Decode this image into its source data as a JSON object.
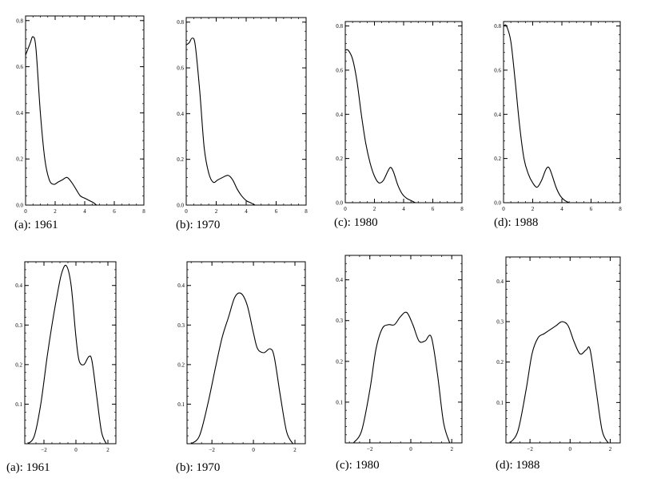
{
  "chart_data": [
    {
      "type": "line",
      "caption": "(a): 1961",
      "xlim": [
        0,
        8
      ],
      "ylim": [
        0,
        0.82
      ],
      "xticks": [
        0,
        2,
        4,
        6,
        8
      ],
      "xtick_labels": [
        "0",
        "2",
        "4",
        "6",
        "8"
      ],
      "yticks": [
        0,
        0.2,
        0.4,
        0.6,
        0.8
      ],
      "ytick_labels": [
        "0.0",
        "0.2",
        "0.4",
        "0.6",
        "0.8"
      ],
      "series": [
        {
          "x": [
            0,
            0.3,
            0.5,
            0.7,
            1.0,
            1.3,
            1.6,
            1.9,
            2.2,
            2.5,
            2.8,
            3.1,
            3.4,
            3.7,
            4.0,
            4.3,
            4.6,
            4.8
          ],
          "y": [
            0.65,
            0.7,
            0.73,
            0.68,
            0.4,
            0.2,
            0.11,
            0.09,
            0.1,
            0.11,
            0.12,
            0.1,
            0.07,
            0.04,
            0.03,
            0.02,
            0.01,
            0.0
          ]
        }
      ]
    },
    {
      "type": "line",
      "caption": "(b): 1970",
      "xlim": [
        0,
        8
      ],
      "ylim": [
        0,
        0.82
      ],
      "xticks": [
        0,
        2,
        4,
        6,
        8
      ],
      "xtick_labels": [
        "0",
        "2",
        "4",
        "6",
        "8"
      ],
      "yticks": [
        0,
        0.2,
        0.4,
        0.6,
        0.8
      ],
      "ytick_labels": [
        "0.0",
        "0.2",
        "0.4",
        "0.6",
        "0.8"
      ],
      "series": [
        {
          "x": [
            0,
            0.2,
            0.4,
            0.6,
            0.9,
            1.2,
            1.5,
            1.8,
            2.1,
            2.4,
            2.8,
            3.1,
            3.4,
            3.7,
            4.0,
            4.3,
            4.6
          ],
          "y": [
            0.7,
            0.71,
            0.73,
            0.7,
            0.5,
            0.25,
            0.14,
            0.1,
            0.11,
            0.12,
            0.13,
            0.11,
            0.07,
            0.04,
            0.02,
            0.01,
            0.0
          ]
        }
      ]
    },
    {
      "type": "line",
      "caption": "(c): 1980",
      "xlim": [
        0,
        8
      ],
      "ylim": [
        0,
        0.82
      ],
      "xticks": [
        0,
        2,
        4,
        6,
        8
      ],
      "xtick_labels": [
        "0",
        "2",
        "4",
        "6",
        "8"
      ],
      "yticks": [
        0,
        0.2,
        0.4,
        0.6,
        0.8
      ],
      "ytick_labels": [
        "0.0",
        "0.2",
        "0.4",
        "0.6",
        "0.8"
      ],
      "series": [
        {
          "x": [
            0,
            0.2,
            0.5,
            0.8,
            1.1,
            1.4,
            1.7,
            2.0,
            2.3,
            2.6,
            2.9,
            3.1,
            3.3,
            3.6,
            3.9,
            4.2,
            4.5,
            4.8
          ],
          "y": [
            0.69,
            0.69,
            0.65,
            0.55,
            0.4,
            0.27,
            0.18,
            0.12,
            0.09,
            0.1,
            0.14,
            0.16,
            0.14,
            0.08,
            0.04,
            0.02,
            0.01,
            0.0
          ]
        }
      ]
    },
    {
      "type": "line",
      "caption": "(d): 1988",
      "xlim": [
        0,
        8
      ],
      "ylim": [
        0,
        0.82
      ],
      "xticks": [
        0,
        2,
        4,
        6,
        8
      ],
      "xtick_labels": [
        "0",
        "2",
        "4",
        "6",
        "8"
      ],
      "yticks": [
        0,
        0.2,
        0.4,
        0.6,
        0.8
      ],
      "ytick_labels": [
        "0.0",
        "0.2",
        "0.4",
        "0.6",
        "0.8"
      ],
      "series": [
        {
          "x": [
            0,
            0.2,
            0.5,
            0.8,
            1.1,
            1.4,
            1.7,
            2.0,
            2.3,
            2.6,
            2.9,
            3.1,
            3.3,
            3.6,
            3.9,
            4.2,
            4.5
          ],
          "y": [
            0.8,
            0.8,
            0.73,
            0.55,
            0.35,
            0.2,
            0.13,
            0.09,
            0.07,
            0.1,
            0.15,
            0.16,
            0.13,
            0.07,
            0.03,
            0.01,
            0.0
          ]
        }
      ]
    },
    {
      "type": "line",
      "caption": "(a): 1961",
      "xlim": [
        -3.2,
        2.5
      ],
      "ylim": [
        0,
        0.46
      ],
      "xticks": [
        -2,
        0,
        2
      ],
      "xtick_labels": [
        "−2",
        "0",
        "2"
      ],
      "yticks": [
        0.1,
        0.2,
        0.3,
        0.4
      ],
      "ytick_labels": [
        "0.1",
        "0.2",
        "0.3",
        "0.4"
      ],
      "series": [
        {
          "x": [
            -3.0,
            -2.6,
            -2.2,
            -1.8,
            -1.5,
            -1.2,
            -0.9,
            -0.6,
            -0.3,
            0.0,
            0.2,
            0.5,
            0.8,
            1.0,
            1.3,
            1.6,
            1.9
          ],
          "y": [
            0.0,
            0.02,
            0.1,
            0.22,
            0.3,
            0.37,
            0.43,
            0.45,
            0.4,
            0.27,
            0.21,
            0.2,
            0.22,
            0.21,
            0.12,
            0.03,
            0.0
          ]
        }
      ]
    },
    {
      "type": "line",
      "caption": "(b): 1970",
      "xlim": [
        -3.2,
        2.5
      ],
      "ylim": [
        0,
        0.46
      ],
      "xticks": [
        -2,
        0,
        2
      ],
      "xtick_labels": [
        "−2",
        "0",
        "2"
      ],
      "yticks": [
        0.1,
        0.2,
        0.3,
        0.4
      ],
      "ytick_labels": [
        "0.1",
        "0.2",
        "0.3",
        "0.4"
      ],
      "series": [
        {
          "x": [
            -3.0,
            -2.6,
            -2.2,
            -1.8,
            -1.5,
            -1.2,
            -0.9,
            -0.6,
            -0.3,
            0.0,
            0.2,
            0.5,
            0.8,
            1.0,
            1.3,
            1.6,
            1.9
          ],
          "y": [
            0.0,
            0.02,
            0.1,
            0.2,
            0.27,
            0.32,
            0.37,
            0.38,
            0.35,
            0.28,
            0.24,
            0.23,
            0.24,
            0.22,
            0.12,
            0.03,
            0.0
          ]
        }
      ]
    },
    {
      "type": "line",
      "caption": "(c): 1980",
      "xlim": [
        -3.2,
        2.5
      ],
      "ylim": [
        0,
        0.46
      ],
      "xticks": [
        -2,
        0,
        2
      ],
      "xtick_labels": [
        "−2",
        "0",
        "2"
      ],
      "yticks": [
        0.1,
        0.2,
        0.3,
        0.4
      ],
      "ytick_labels": [
        "0.1",
        "0.2",
        "0.3",
        "0.4"
      ],
      "series": [
        {
          "x": [
            -2.8,
            -2.4,
            -2.0,
            -1.7,
            -1.4,
            -1.1,
            -0.8,
            -0.5,
            -0.2,
            0.1,
            0.4,
            0.7,
            1.0,
            1.3,
            1.6,
            1.9
          ],
          "y": [
            0.0,
            0.03,
            0.13,
            0.23,
            0.28,
            0.29,
            0.29,
            0.31,
            0.32,
            0.29,
            0.25,
            0.25,
            0.26,
            0.17,
            0.05,
            0.0
          ]
        }
      ]
    },
    {
      "type": "line",
      "caption": "(d): 1988",
      "xlim": [
        -3.2,
        2.5
      ],
      "ylim": [
        0,
        0.46
      ],
      "xticks": [
        -2,
        0,
        2
      ],
      "xtick_labels": [
        "−2",
        "0",
        "2"
      ],
      "yticks": [
        0.1,
        0.2,
        0.3,
        0.4
      ],
      "ytick_labels": [
        "0.1",
        "0.2",
        "0.3",
        "0.4"
      ],
      "series": [
        {
          "x": [
            -3.0,
            -2.6,
            -2.2,
            -1.9,
            -1.6,
            -1.3,
            -1.0,
            -0.7,
            -0.4,
            -0.1,
            0.2,
            0.5,
            0.8,
            1.0,
            1.3,
            1.6,
            1.9
          ],
          "y": [
            0.0,
            0.03,
            0.13,
            0.22,
            0.26,
            0.27,
            0.28,
            0.29,
            0.3,
            0.29,
            0.25,
            0.22,
            0.23,
            0.23,
            0.13,
            0.03,
            0.0
          ]
        }
      ]
    }
  ]
}
